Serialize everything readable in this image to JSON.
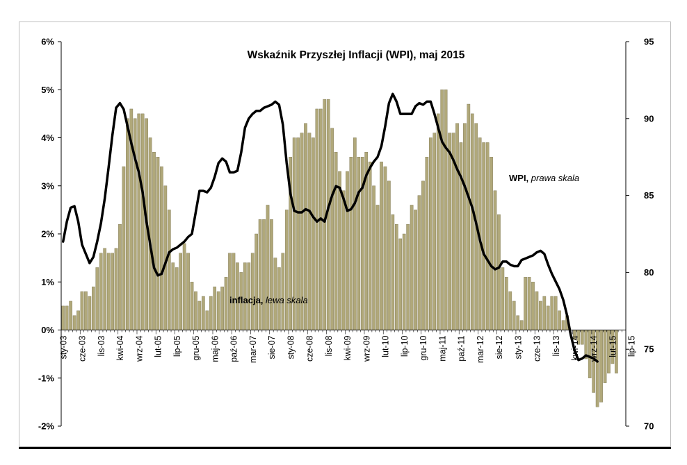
{
  "chart_data": {
    "type": "bar+line",
    "title": "Wskaźnik Przyszłej Inflacji (WPI), maj 2015",
    "left_axis": {
      "ylim": [
        -2,
        6
      ],
      "ticks": [
        "-2%",
        "-1%",
        "0%",
        "1%",
        "2%",
        "3%",
        "4%",
        "5%",
        "6%"
      ]
    },
    "right_axis": {
      "ylim": [
        70,
        95
      ],
      "ticks": [
        "70",
        "75",
        "80",
        "85",
        "90",
        "95"
      ]
    },
    "x_tick_labels": [
      "sty-03",
      "cze-03",
      "lis-03",
      "kwi-04",
      "wrz-04",
      "lut-05",
      "lip-05",
      "gru-05",
      "maj-06",
      "paź-06",
      "mar-07",
      "sie-07",
      "sty-08",
      "cze-08",
      "lis-08",
      "kwi-09",
      "wrz-09",
      "lut-10",
      "lip-10",
      "gru-10",
      "maj-11",
      "paź-11",
      "mar-12",
      "sie-12",
      "sty-13",
      "cze-13",
      "lis-13",
      "kwi-14",
      "wrz-14",
      "lut-15",
      "lip-15"
    ],
    "start_month": "sty-03",
    "series": [
      {
        "name": "inflacja",
        "axis": "left",
        "kind": "bar",
        "color": "#b0a87a",
        "values": [
          0.5,
          0.5,
          0.6,
          0.3,
          0.4,
          0.8,
          0.8,
          0.7,
          0.9,
          1.3,
          1.6,
          1.7,
          1.6,
          1.6,
          1.7,
          2.2,
          3.4,
          4.4,
          4.6,
          4.4,
          4.5,
          4.5,
          4.4,
          4.0,
          3.7,
          3.6,
          3.4,
          3.0,
          2.5,
          1.4,
          1.3,
          1.6,
          1.8,
          1.6,
          1.0,
          0.8,
          0.6,
          0.7,
          0.4,
          0.7,
          0.9,
          0.8,
          0.9,
          1.1,
          1.6,
          1.6,
          1.4,
          1.2,
          1.4,
          1.4,
          1.6,
          2.0,
          2.3,
          2.3,
          2.6,
          2.3,
          1.5,
          1.3,
          1.6,
          2.5,
          3.6,
          4.0,
          4.0,
          4.1,
          4.3,
          4.1,
          4.0,
          4.6,
          4.6,
          4.8,
          4.8,
          4.2,
          3.7,
          3.3,
          2.9,
          3.3,
          3.6,
          4.0,
          3.6,
          3.6,
          3.7,
          3.5,
          3.0,
          2.6,
          3.5,
          3.4,
          3.1,
          2.4,
          2.2,
          1.9,
          2.0,
          2.2,
          2.6,
          2.5,
          2.8,
          3.1,
          3.6,
          4.0,
          4.1,
          4.5,
          5.0,
          5.0,
          4.1,
          4.1,
          4.3,
          3.9,
          4.3,
          4.7,
          4.5,
          4.3,
          4.0,
          3.9,
          3.9,
          3.6,
          2.9,
          2.4,
          1.3,
          1.1,
          0.8,
          0.6,
          0.3,
          0.2,
          1.1,
          1.1,
          1.0,
          0.8,
          0.6,
          0.7,
          0.5,
          0.7,
          0.7,
          0.4,
          0.2,
          0.3,
          0.0,
          -0.2,
          -0.3,
          -0.3,
          -0.6,
          -1.0,
          -1.3,
          -1.6,
          -1.5,
          -1.1,
          -0.9,
          -0.7,
          -0.9,
          0.0
        ]
      },
      {
        "name": "WPI",
        "axis": "right",
        "kind": "line",
        "color": "#000000",
        "values": [
          82.0,
          83.3,
          84.2,
          84.3,
          83.3,
          81.8,
          81.2,
          80.6,
          81.0,
          82.0,
          83.2,
          84.8,
          86.8,
          88.9,
          90.7,
          91.0,
          90.6,
          89.5,
          88.4,
          87.4,
          86.5,
          85.2,
          83.3,
          81.8,
          80.3,
          79.8,
          79.9,
          80.6,
          81.3,
          81.5,
          81.6,
          81.8,
          82.0,
          82.3,
          82.5,
          83.9,
          85.3,
          85.3,
          85.2,
          85.5,
          86.2,
          87.1,
          87.4,
          87.2,
          86.5,
          86.5,
          86.6,
          87.8,
          89.4,
          90.0,
          90.3,
          90.5,
          90.5,
          90.7,
          90.8,
          90.9,
          91.1,
          90.9,
          89.6,
          87.1,
          85.1,
          84.0,
          83.9,
          83.9,
          84.1,
          84.0,
          83.6,
          83.3,
          83.5,
          83.3,
          84.2,
          85.0,
          85.6,
          85.5,
          84.8,
          84.0,
          84.1,
          84.5,
          85.2,
          85.5,
          86.3,
          86.8,
          87.2,
          87.5,
          88.2,
          89.5,
          91.0,
          91.6,
          91.1,
          90.3,
          90.3,
          90.3,
          90.3,
          90.8,
          91.0,
          90.9,
          91.1,
          91.1,
          90.3,
          89.4,
          88.5,
          88.1,
          87.8,
          87.3,
          86.7,
          86.2,
          85.6,
          84.9,
          84.2,
          83.2,
          82.1,
          81.2,
          80.8,
          80.4,
          80.2,
          80.3,
          80.7,
          80.7,
          80.5,
          80.4,
          80.4,
          80.8,
          80.9,
          81.0,
          81.1,
          81.3,
          81.4,
          81.2,
          80.5,
          79.9,
          79.4,
          78.9,
          78.2,
          77.2,
          75.9,
          74.9,
          74.3,
          74.4,
          74.6,
          74.5,
          74.4,
          74.2
        ]
      }
    ],
    "annotations": [
      {
        "text_main": "inflacja, ",
        "text_italic": "lewa skala"
      },
      {
        "text_main": "WPI, ",
        "text_italic": "prawa skala"
      }
    ],
    "grid": false,
    "legend": "none"
  }
}
